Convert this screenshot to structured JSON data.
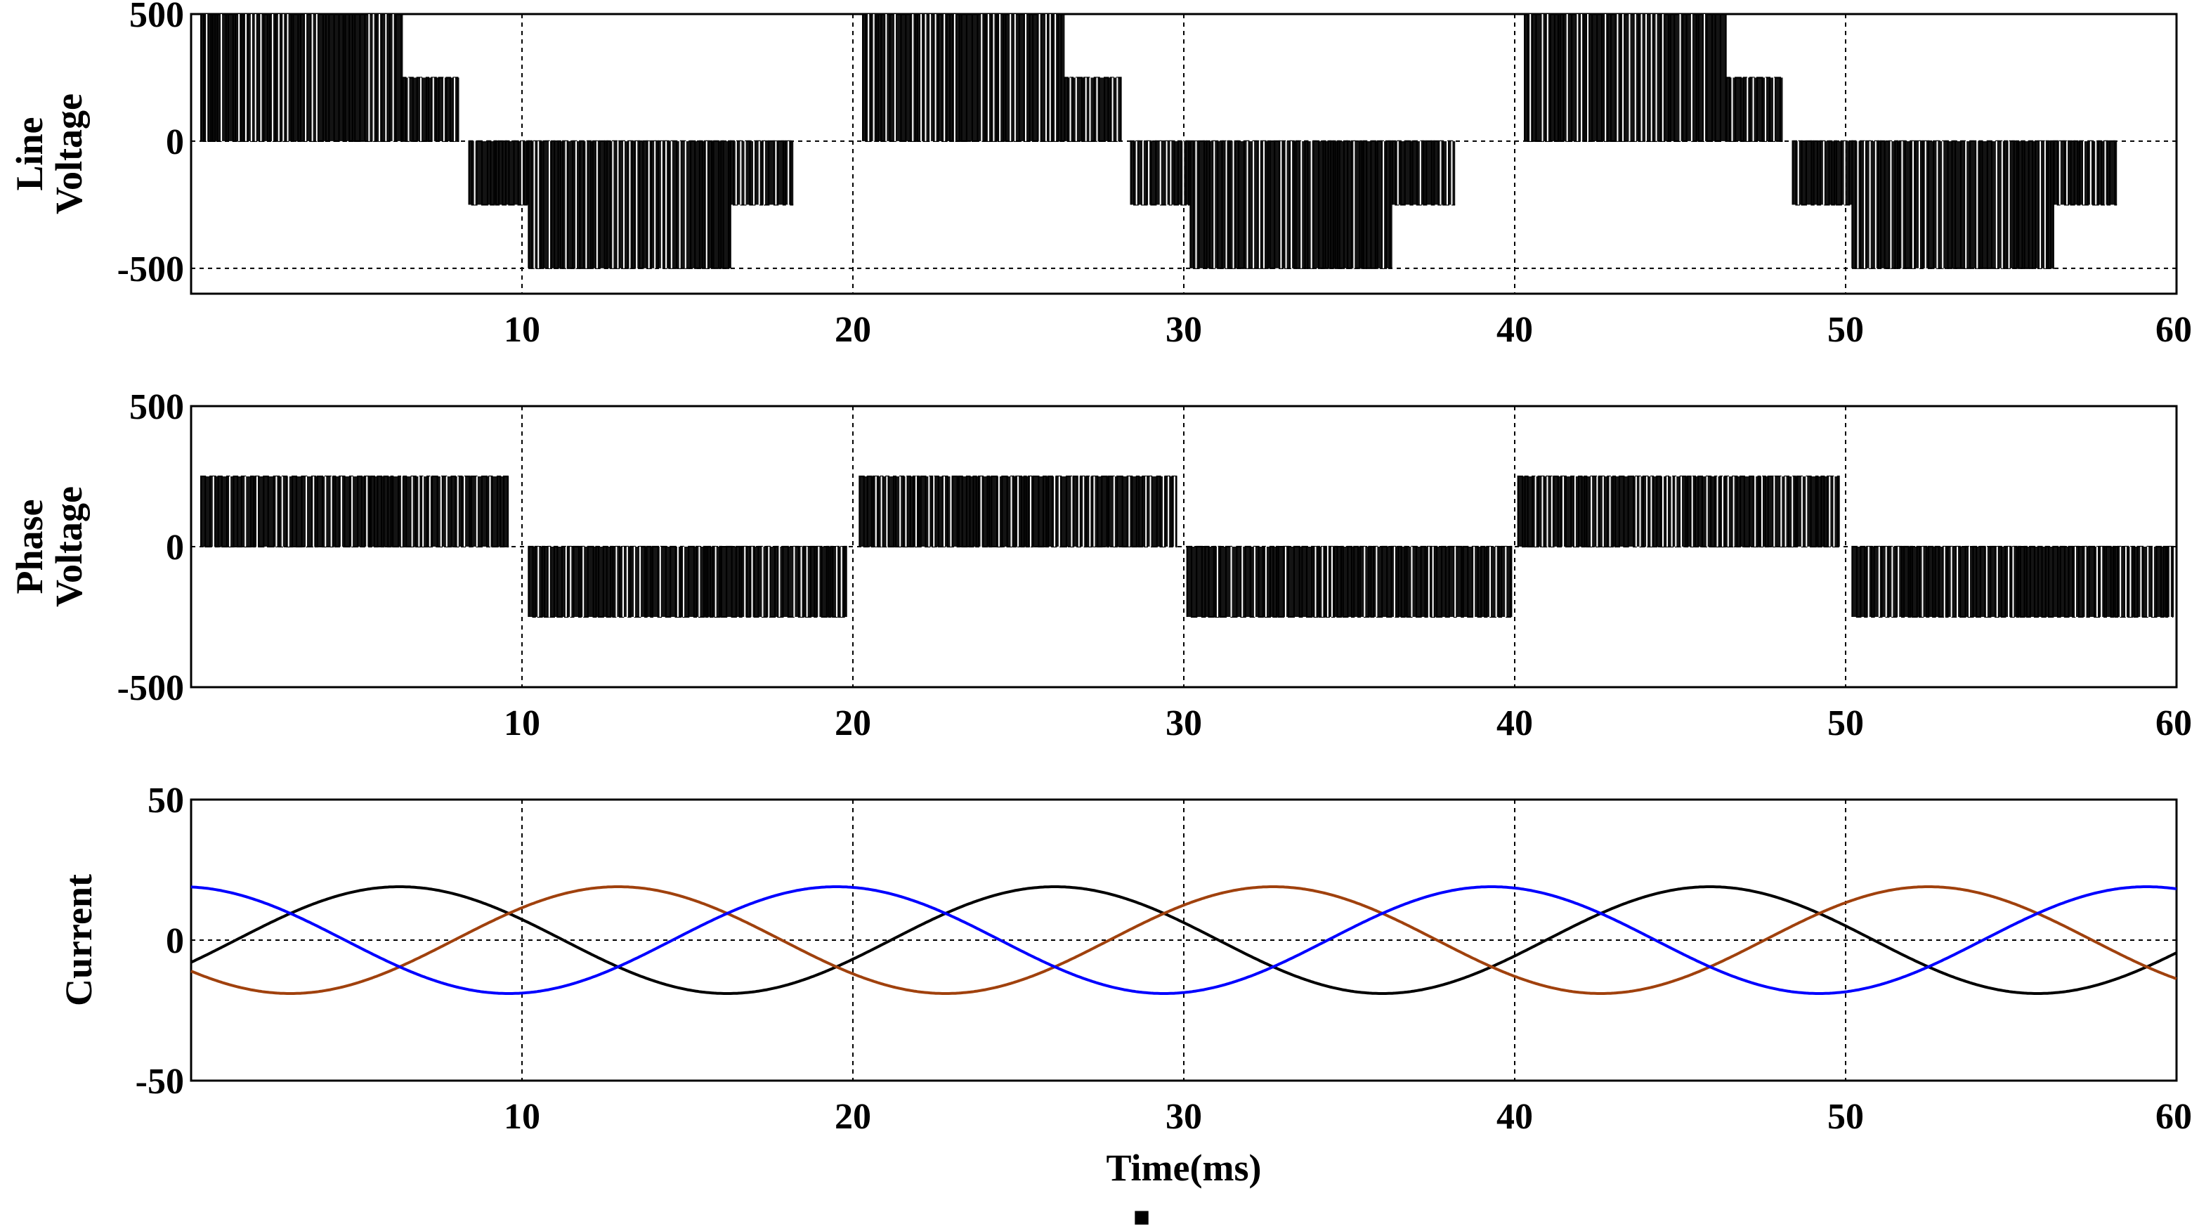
{
  "chart_data": [
    {
      "type": "line",
      "id": "line-voltage",
      "ylabel": [
        "Line",
        "Voltage"
      ],
      "xlabel": "",
      "xlim": [
        0,
        60
      ],
      "ylim": [
        -600,
        500
      ],
      "x_ticks": [
        10,
        20,
        30,
        40,
        50,
        60
      ],
      "y_ticks": [
        500,
        0,
        -500
      ],
      "grid": true,
      "colors": {
        "line": "#000000",
        "grid": "#000000"
      },
      "series": [
        {
          "waveform": "five-level PWM line voltage",
          "period_ms": 20,
          "phase_ms": 0,
          "levels": [
            0,
            250,
            500
          ],
          "segments": [
            {
              "from": 0.3,
              "to": 6.4,
              "low": 0,
              "high": 500
            },
            {
              "from": 6.4,
              "to": 8.1,
              "low": 0,
              "high": 250
            },
            {
              "from": 8.4,
              "to": 10.2,
              "low": -250,
              "high": 0
            },
            {
              "from": 10.2,
              "to": 16.3,
              "low": -500,
              "high": 0
            },
            {
              "from": 16.3,
              "to": 18.2,
              "low": -250,
              "high": 0
            }
          ]
        }
      ]
    },
    {
      "type": "line",
      "id": "phase-voltage",
      "ylabel": [
        "Phase",
        "Voltage"
      ],
      "xlabel": "",
      "xlim": [
        0,
        60
      ],
      "ylim": [
        -500,
        500
      ],
      "x_ticks": [
        10,
        20,
        30,
        40,
        50,
        60
      ],
      "y_ticks": [
        500,
        0,
        -500
      ],
      "grid": true,
      "colors": {
        "line": "#000000",
        "grid": "#000000"
      },
      "series": [
        {
          "waveform": "three-level PWM phase voltage",
          "amplitude": 250,
          "segments": [
            {
              "from": 0.3,
              "to": 9.6,
              "low": 0,
              "high": 250
            },
            {
              "from": 10.2,
              "to": 19.8,
              "low": -250,
              "high": 0
            },
            {
              "from": 20.2,
              "to": 29.8,
              "low": 0,
              "high": 250
            },
            {
              "from": 30.1,
              "to": 39.9,
              "low": -250,
              "high": 0
            },
            {
              "from": 40.1,
              "to": 49.8,
              "low": 0,
              "high": 250
            },
            {
              "from": 50.2,
              "to": 59.9,
              "low": -250,
              "high": 0
            }
          ]
        }
      ]
    },
    {
      "type": "line",
      "id": "current",
      "ylabel": [
        "Current"
      ],
      "xlabel": "Time(ms)",
      "xlim": [
        0,
        60
      ],
      "ylim": [
        -50,
        50
      ],
      "x_ticks": [
        10,
        20,
        30,
        40,
        50,
        60
      ],
      "y_ticks": [
        50,
        0,
        -50
      ],
      "grid": true,
      "colors": {
        "grid": "#000000"
      },
      "series": [
        {
          "color": "#000000",
          "amplitude": 19,
          "period_ms": 19.8,
          "peak_at_ms": 6.3
        },
        {
          "color": "#a0410d",
          "amplitude": 19,
          "period_ms": 19.8,
          "peak_at_ms": 12.9
        },
        {
          "color": "#0000ff",
          "amplitude": 19,
          "period_ms": 19.8,
          "peak_at_ms": 19.5
        }
      ]
    }
  ],
  "footer_mark": "■"
}
